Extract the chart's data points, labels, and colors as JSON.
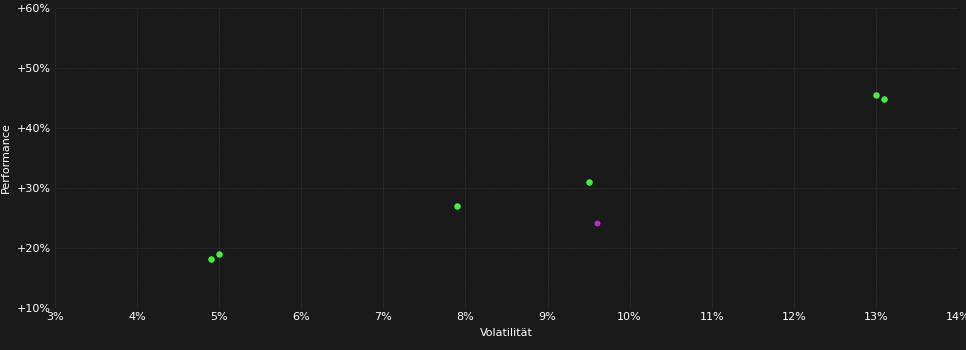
{
  "background_color": "#1a1a1a",
  "plot_bg_color": "#1a1a1a",
  "grid_color": "#3a3a3a",
  "text_color": "#ffffff",
  "xlabel": "Volatilität",
  "ylabel": "Performance",
  "xlim": [
    0.03,
    0.14
  ],
  "ylim": [
    0.1,
    0.6
  ],
  "xticks": [
    0.03,
    0.04,
    0.05,
    0.06,
    0.07,
    0.08,
    0.09,
    0.1,
    0.11,
    0.12,
    0.13,
    0.14
  ],
  "yticks": [
    0.1,
    0.2,
    0.3,
    0.4,
    0.5,
    0.6
  ],
  "green_points": [
    [
      0.049,
      0.182
    ],
    [
      0.05,
      0.19
    ],
    [
      0.079,
      0.27
    ],
    [
      0.095,
      0.31
    ],
    [
      0.13,
      0.455
    ],
    [
      0.131,
      0.448
    ]
  ],
  "magenta_points": [
    [
      0.096,
      0.242
    ]
  ],
  "green_color": "#44ee44",
  "magenta_color": "#cc22cc",
  "marker_size": 22,
  "axis_fontsize": 8,
  "tick_fontsize": 8,
  "ylabel_fontsize": 8,
  "xlabel_fontsize": 8
}
